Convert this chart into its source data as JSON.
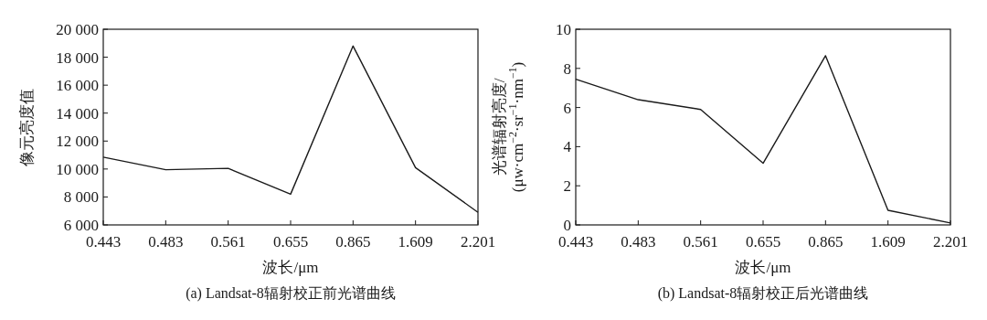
{
  "chart_data": [
    {
      "type": "line",
      "title": "(a) Landsat-8辐射校正前光谱曲线",
      "xlabel": "波长/μm",
      "ylabel": "像元亮度值",
      "categories": [
        "0.443",
        "0.483",
        "0.561",
        "0.655",
        "0.865",
        "1.609",
        "2.201"
      ],
      "series": [
        {
          "color": "#1a1a1a",
          "values": [
            10850,
            9950,
            10050,
            8200,
            18800,
            10100,
            6900
          ]
        }
      ],
      "ylim": [
        6000,
        20000
      ],
      "yticks": [
        {
          "value": 6000,
          "label": "6 000"
        },
        {
          "value": 8000,
          "label": "8 000"
        },
        {
          "value": 10000,
          "label": "10 000"
        },
        {
          "value": 12000,
          "label": "12 000"
        },
        {
          "value": 14000,
          "label": "14 000"
        },
        {
          "value": 16000,
          "label": "16 000"
        },
        {
          "value": 18000,
          "label": "18 000"
        },
        {
          "value": 20000,
          "label": "20 000"
        }
      ]
    },
    {
      "type": "line",
      "title": "(b) Landsat-8辐射校正后光谱曲线",
      "xlabel": "波长/μm",
      "ylabel": "光谱辐射亮度/\n(μw·cm$^{−2}$·sr$^{−1}$·nm$^{−1}$)",
      "categories": [
        "0.443",
        "0.483",
        "0.561",
        "0.655",
        "0.865",
        "1.609",
        "2.201"
      ],
      "series": [
        {
          "color": "#1a1a1a",
          "values": [
            7.45,
            6.4,
            5.9,
            3.15,
            8.65,
            0.75,
            0.1
          ]
        }
      ],
      "ylim": [
        0,
        10
      ],
      "yticks": [
        0,
        2,
        4,
        6,
        8,
        10
      ]
    }
  ]
}
